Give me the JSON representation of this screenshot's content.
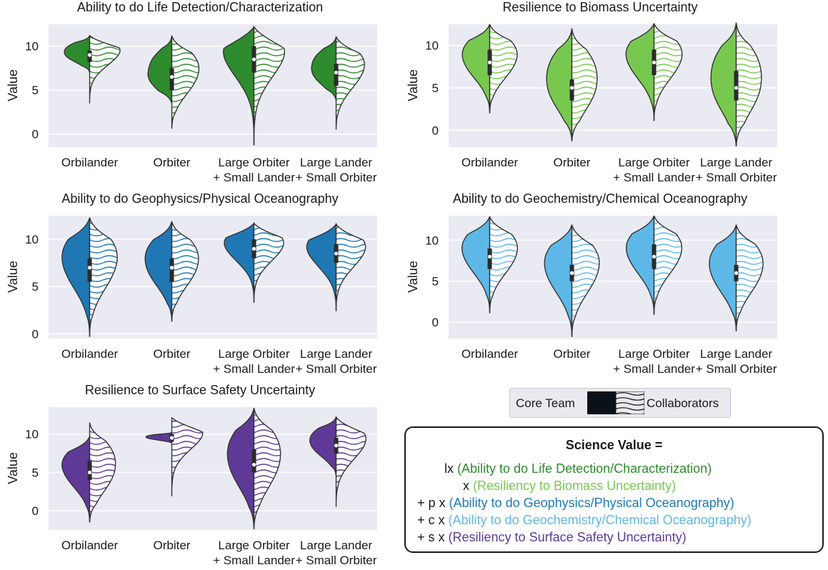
{
  "colors": {
    "life": "#2e8b2e",
    "biomass": "#78c850",
    "geophys": "#1f78b4",
    "geochem": "#5db8e8",
    "surface": "#5e3a96",
    "plot_bg": "#eaeaf2",
    "grid": "#ffffff"
  },
  "legend": {
    "core_label": "Core Team",
    "collab_label": "Collaborators",
    "core_pattern": "solid",
    "collab_pattern": "wavy-hatch"
  },
  "formula": {
    "title": "Science Value =",
    "lines": [
      {
        "op": "lx",
        "text": "(Ability to do Life Detection/Characterization)",
        "color_key": "life"
      },
      {
        "op": "x",
        "text": "(Resiliency to Biomass Uncertainty)",
        "color_key": "biomass"
      },
      {
        "op": "+ p x",
        "text": "(Ability to do Geophysics/Physical Oceanography)",
        "color_key": "geophys"
      },
      {
        "op": "+ c x",
        "text": "(Ability to do Geochemistry/Chemical Oceanography)",
        "color_key": "geochem"
      },
      {
        "op": "+ s x",
        "text": "(Resiliency to Surface Safety Uncertainty)",
        "color_key": "surface"
      }
    ]
  },
  "chart_data": [
    {
      "type": "violin",
      "title": "Ability to do Life Detection/Characterization",
      "ylabel": "Value",
      "xlabel": "",
      "yticks": [
        0,
        5,
        10
      ],
      "ylim": [
        -1.5,
        12.5
      ],
      "color_key": "life",
      "categories": [
        "Orbilander",
        "Orbiter",
        "Large Orbiter\n+ Small Lander",
        "Large Lander\n+ Small Orbiter"
      ],
      "series": [
        {
          "name": "Core Team",
          "side": "left",
          "ranges": [
            [
              7,
              11.2
            ],
            [
              3.5,
              11.2
            ],
            [
              -1.3,
              12.2
            ],
            [
              3.8,
              11.1
            ]
          ],
          "medians": [
            9,
            6.5,
            8.5,
            7
          ],
          "iqr": [
            [
              8.2,
              9.5
            ],
            [
              5,
              7.5
            ],
            [
              7,
              10
            ],
            [
              5.5,
              8
            ]
          ]
        },
        {
          "name": "Collaborators",
          "side": "right",
          "ranges": [
            [
              3.5,
              11.2
            ],
            [
              0.6,
              11.2
            ],
            [
              -1.3,
              12.2
            ],
            [
              0.5,
              11.1
            ]
          ]
        }
      ]
    },
    {
      "type": "violin",
      "title": "Resilience to Biomass Uncertainty",
      "ylabel": "Value",
      "xlabel": "",
      "yticks": [
        0,
        5,
        10
      ],
      "ylim": [
        -2,
        12.5
      ],
      "color_key": "biomass",
      "categories": [
        "Orbilander",
        "Orbiter",
        "Large Orbiter\n+ Small Lander",
        "Large Lander\n+ Small Orbiter"
      ],
      "series": [
        {
          "name": "Core Team",
          "side": "left",
          "ranges": [
            [
              2,
              12.5
            ],
            [
              -1.3,
              12
            ],
            [
              1.1,
              12.6
            ],
            [
              -1.9,
              12.7
            ]
          ],
          "medians": [
            8,
            5,
            8,
            5
          ],
          "iqr": [
            [
              6.5,
              9.5
            ],
            [
              3.5,
              6
            ],
            [
              6.5,
              9.5
            ],
            [
              3.5,
              7
            ]
          ]
        },
        {
          "name": "Collaborators",
          "side": "right",
          "ranges": [
            [
              2,
              12.5
            ],
            [
              -1.3,
              12
            ],
            [
              1.1,
              12.6
            ],
            [
              -1.9,
              12.7
            ]
          ]
        }
      ]
    },
    {
      "type": "violin",
      "title": "Ability to do Geophysics/Physical Oceanography",
      "ylabel": "Value",
      "xlabel": "",
      "yticks": [
        0,
        5,
        10
      ],
      "ylim": [
        -0.5,
        12.5
      ],
      "color_key": "geophys",
      "categories": [
        "Orbilander",
        "Orbiter",
        "Large Orbiter\n+ Small Lander",
        "Large Lander\n+ Small Orbiter"
      ],
      "series": [
        {
          "name": "Core Team",
          "side": "left",
          "ranges": [
            [
              -0.3,
              12.3
            ],
            [
              1.3,
              11.9
            ],
            [
              3.3,
              11.7
            ],
            [
              2.4,
              11.6
            ]
          ],
          "medians": [
            7,
            7,
            9,
            8.5
          ],
          "iqr": [
            [
              5.5,
              8
            ],
            [
              5.5,
              8
            ],
            [
              8,
              10
            ],
            [
              7.5,
              9.5
            ]
          ]
        },
        {
          "name": "Collaborators",
          "side": "right",
          "ranges": [
            [
              -0.3,
              12.3
            ],
            [
              1.3,
              11.9
            ],
            [
              3.3,
              11.7
            ],
            [
              2.4,
              11.6
            ]
          ]
        }
      ]
    },
    {
      "type": "violin",
      "title": "Ability to do Geochemistry/Chemical Oceanography",
      "ylabel": "Value",
      "xlabel": "",
      "yticks": [
        0,
        5,
        10
      ],
      "ylim": [
        -2,
        13
      ],
      "color_key": "geochem",
      "categories": [
        "Orbilander",
        "Orbiter",
        "Large Orbiter\n+ Small Lander",
        "Large Lander\n+ Small Orbiter"
      ],
      "series": [
        {
          "name": "Core Team",
          "side": "left",
          "ranges": [
            [
              1.1,
              12.9
            ],
            [
              -1.8,
              11.9
            ],
            [
              0.9,
              13
            ],
            [
              -1.1,
              11.9
            ]
          ],
          "medians": [
            8,
            6,
            8,
            6
          ],
          "iqr": [
            [
              6.5,
              9
            ],
            [
              5,
              7
            ],
            [
              6.5,
              9.5
            ],
            [
              5,
              7
            ]
          ]
        },
        {
          "name": "Collaborators",
          "side": "right",
          "ranges": [
            [
              1.1,
              12.9
            ],
            [
              -1.8,
              11.9
            ],
            [
              0.9,
              13
            ],
            [
              -1.1,
              11.9
            ]
          ]
        }
      ]
    },
    {
      "type": "violin",
      "title": "Resilience to Surface Safety Uncertainty",
      "ylabel": "Value",
      "xlabel": "",
      "yticks": [
        0,
        5,
        10
      ],
      "ylim": [
        -2.5,
        13.5
      ],
      "color_key": "surface",
      "categories": [
        "Orbilander",
        "Orbiter",
        "Large Orbiter\n+ Small Lander",
        "Large Lander\n+ Small Orbiter"
      ],
      "series": [
        {
          "name": "Core Team",
          "side": "left",
          "ranges": [
            [
              -1.5,
              9.7
            ],
            [
              8.8,
              10.2
            ],
            [
              -2.4,
              13.4
            ],
            [
              4.5,
              12.2
            ]
          ],
          "medians": [
            5,
            9.5,
            6,
            8.5
          ],
          "iqr": [
            [
              4,
              6.5
            ],
            [
              9,
              10
            ],
            [
              5,
              8
            ],
            [
              7.5,
              9.5
            ]
          ]
        },
        {
          "name": "Collaborators",
          "side": "right",
          "ranges": [
            [
              -1.5,
              11.5
            ],
            [
              1.9,
              12.1
            ],
            [
              -2.4,
              13.4
            ],
            [
              0.5,
              12.2
            ]
          ]
        }
      ]
    }
  ]
}
